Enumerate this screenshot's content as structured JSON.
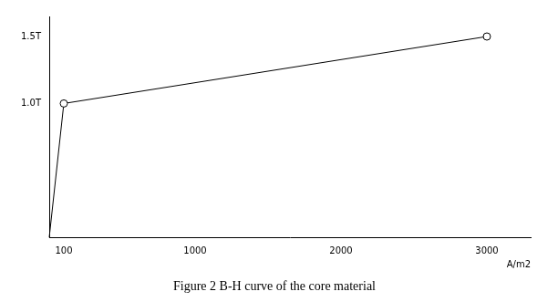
{
  "chart_data": {
    "type": "line",
    "title": "Figure 2 B-H curve of the core material",
    "x_label": "A/m2",
    "x": [
      0,
      100,
      3000
    ],
    "values": [
      0,
      1.0,
      1.5
    ],
    "color": "#000000",
    "marker": "circle",
    "xlim": [
      0,
      3300
    ],
    "ylim": [
      0,
      1.65
    ],
    "xticks": [
      100,
      1000,
      2000,
      3000
    ],
    "yticks": [
      {
        "value": 1,
        "label": "1.0T"
      },
      {
        "value": 1.5,
        "label": "1.5T"
      }
    ],
    "grid": false
  }
}
